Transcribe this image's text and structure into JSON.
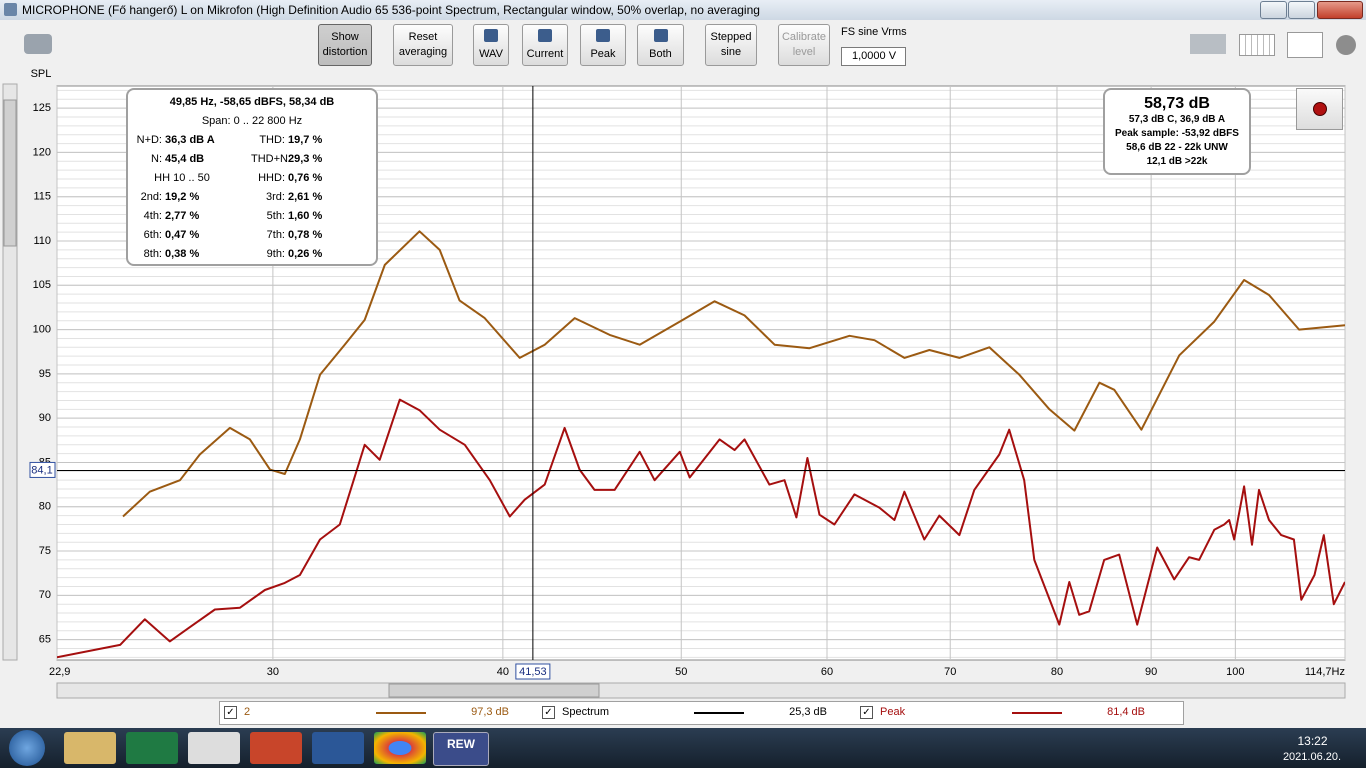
{
  "window": {
    "title": "MICROPHONE (Fő hangerő) L on Mikrofon (High Definition Audio 65 536-point Spectrum, Rectangular window, 50% overlap, no averaging"
  },
  "toolbar": {
    "buttons": [
      "Show distortion",
      "Reset averaging",
      "WAV",
      "Current",
      "Peak",
      "Both",
      "Stepped sine",
      "Calibrate level"
    ],
    "fs_label": "FS sine Vrms",
    "fs_value": "1,0000 V"
  },
  "chart_data": {
    "type": "line",
    "y_label": "SPL",
    "log_x": true,
    "grid": true,
    "xlim": [
      22.9,
      114.7
    ],
    "ylim": [
      62.7,
      127.5
    ],
    "xticks": [
      {
        "value": 22.9,
        "label": "22,9"
      },
      30,
      40,
      50,
      60,
      70,
      80,
      90,
      100,
      {
        "value": 114.7,
        "label": "114,7Hz"
      }
    ],
    "yticks": [
      65,
      70,
      75,
      80,
      85,
      90,
      95,
      100,
      105,
      110,
      115,
      120,
      125
    ],
    "cursor": {
      "x": {
        "value": 41.53,
        "label": "41,53"
      },
      "y": {
        "value": 84.1,
        "label": "84,1"
      }
    },
    "series": [
      {
        "name": "2",
        "color": "#9b5a12",
        "level": "97,3 dB",
        "x": [
          24.87,
          25.72,
          26.71,
          27.38,
          28.43,
          29.15,
          29.89,
          30.45,
          31.03,
          31.82,
          32.82,
          33.65,
          34.51,
          36.04,
          36.96,
          37.89,
          39.1,
          40.85,
          42.15,
          43.76,
          45.72,
          47.47,
          49.91,
          52.13,
          54.12,
          56.19,
          58.7,
          61.71,
          63.67,
          66.1,
          68.2,
          70.81,
          73.51,
          76.33,
          79.25,
          81.76,
          84.36,
          85.95,
          88.91,
          93.23,
          97.4,
          101.1,
          104.3,
          108.3,
          114.7
        ],
        "values": [
          78.9,
          81.7,
          83.0,
          85.9,
          88.9,
          87.6,
          84.2,
          83.7,
          87.6,
          94.9,
          98.3,
          101.1,
          107.3,
          111.1,
          109.0,
          103.3,
          101.3,
          96.8,
          98.3,
          101.3,
          99.4,
          98.3,
          100.9,
          103.2,
          101.6,
          98.3,
          97.9,
          99.3,
          98.8,
          96.8,
          97.7,
          96.8,
          98.0,
          94.9,
          91.0,
          88.6,
          94.0,
          93.2,
          88.7,
          97.1,
          100.9,
          105.6,
          103.9,
          100.0,
          100.5
        ]
      },
      {
        "name": "Spectrum",
        "color": "#000000",
        "level": "25,3 dB"
      },
      {
        "name": "Peak",
        "color": "#a50f0f",
        "level": "81,4 dB",
        "x": [
          22.9,
          24.78,
          25.56,
          26.37,
          27.04,
          27.9,
          28.79,
          29.7,
          30.45,
          31.03,
          31.82,
          32.62,
          33.65,
          34.29,
          35.16,
          36.04,
          36.96,
          38.14,
          39.35,
          40.35,
          41.11,
          42.15,
          43.21,
          44.03,
          44.86,
          46.0,
          47.47,
          48.36,
          49.91,
          50.53,
          52.46,
          53.45,
          54.12,
          55.83,
          56.89,
          57.75,
          58.55,
          59.44,
          60.56,
          62.09,
          64.06,
          65.28,
          66.1,
          67.77,
          69.05,
          70.81,
          72.14,
          74.43,
          75.36,
          76.79,
          77.76,
          80.23,
          81.24,
          82.26,
          83.29,
          84.87,
          86.48,
          88.44,
          90.68,
          92.63,
          94.38,
          95.57,
          97.4,
          98.61,
          99.23,
          99.85,
          101.1,
          102.1,
          103.0,
          104.3,
          105.9,
          107.6,
          108.6,
          110.4,
          111.7,
          113.1,
          114.7
        ],
        "values": [
          63.0,
          64.4,
          67.3,
          64.8,
          66.4,
          68.4,
          68.6,
          70.6,
          71.4,
          72.3,
          76.3,
          78.0,
          87.0,
          85.3,
          92.1,
          90.9,
          88.7,
          87.0,
          83.0,
          78.9,
          80.8,
          82.5,
          88.9,
          84.2,
          81.9,
          81.9,
          86.2,
          83.0,
          86.2,
          83.3,
          87.6,
          86.4,
          87.6,
          82.5,
          83.0,
          78.8,
          85.5,
          79.1,
          78.0,
          81.4,
          79.9,
          78.5,
          81.7,
          76.3,
          79.0,
          76.8,
          81.9,
          85.9,
          88.7,
          83.0,
          74.0,
          66.7,
          71.5,
          67.8,
          68.2,
          74.0,
          74.6,
          66.7,
          75.4,
          71.8,
          74.3,
          74.0,
          77.4,
          78.0,
          78.5,
          76.3,
          82.3,
          75.7,
          81.9,
          78.5,
          76.8,
          76.3,
          69.5,
          72.3,
          76.8,
          69.0,
          71.5
        ]
      }
    ]
  },
  "info_box": {
    "header": "49,85 Hz, -58,65 dBFS, 58,34 dB",
    "span": "Span: 0 .. 22 800 Hz",
    "rows": [
      [
        {
          "label": "N+D:",
          "value": "36,3 dB A"
        },
        {
          "label": "THD:",
          "value": "19,7 %"
        }
      ],
      [
        {
          "label": "N:",
          "value": "45,4 dB"
        },
        {
          "label": "THD+N:",
          "value": "29,3 %"
        }
      ],
      [
        {
          "label": "HH 10 .. 50"
        },
        {
          "label": "HHD:",
          "value": "0,76 %"
        }
      ],
      [
        {
          "label": "2nd:",
          "value": "19,2 %"
        },
        {
          "label": "3rd:",
          "value": "2,61 %"
        }
      ],
      [
        {
          "label": "4th:",
          "value": "2,77 %"
        },
        {
          "label": "5th:",
          "value": "1,60 %"
        }
      ],
      [
        {
          "label": "6th:",
          "value": "0,47 %"
        },
        {
          "label": "7th:",
          "value": "0,78 %"
        }
      ],
      [
        {
          "label": "8th:",
          "value": "0,38 %"
        },
        {
          "label": "9th:",
          "value": "0,26 %"
        }
      ]
    ]
  },
  "level_box": {
    "main": "58,73 dB",
    "lines": [
      "57,3 dB C, 36,9 dB A",
      "Peak sample: -53,92 dBFS",
      "58,6 dB 22 - 22k UNW",
      "12,1 dB >22k"
    ]
  },
  "taskbar": {
    "active_app": "REW",
    "time": "13:22",
    "date": "2021.06.20."
  }
}
